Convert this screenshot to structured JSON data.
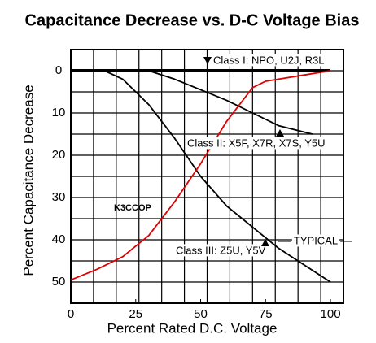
{
  "chart_data": {
    "type": "line",
    "title": "Capacitance Decrease vs. D-C Voltage Bias",
    "x_label": "Percent Rated D.C. Voltage",
    "y_label": "Percent Capacitance Decrease",
    "xlim": [
      0,
      105
    ],
    "ylim": [
      -5,
      55
    ],
    "y_inverted": true,
    "xticks": [
      0,
      25,
      50,
      75,
      100
    ],
    "yticks": [
      0,
      10,
      20,
      30,
      40,
      50
    ],
    "grid": true,
    "xgrid_step": 8.75,
    "ygrid_step": 5,
    "annotation": "TYPICAL",
    "series": [
      {
        "name": "Class I: NPO, U2J, R3L",
        "color": "#000000",
        "x": [
          0,
          100
        ],
        "values": [
          0,
          0
        ]
      },
      {
        "name": "Class II:  X5F, X7R, X7S, Y5U",
        "color": "#000000",
        "x": [
          0,
          30,
          40,
          50,
          60,
          70,
          80,
          93
        ],
        "values": [
          0,
          0,
          2,
          4.5,
          7,
          10,
          13,
          15
        ]
      },
      {
        "name": "Class III: Z5U, Y5V",
        "color": "#000000",
        "x": [
          0,
          13,
          20,
          30,
          40,
          50,
          60,
          70,
          80,
          90,
          100
        ],
        "values": [
          0,
          0,
          2,
          8,
          16,
          25,
          32,
          37,
          42,
          46,
          50
        ]
      },
      {
        "name": "K3CCOP",
        "color": "#e00000",
        "x": [
          0,
          10,
          20,
          30,
          40,
          50,
          60,
          70,
          75,
          80,
          90,
          100
        ],
        "values": [
          49.5,
          47,
          44,
          39,
          31,
          22,
          12,
          4,
          2.5,
          2,
          1,
          0
        ]
      }
    ]
  }
}
